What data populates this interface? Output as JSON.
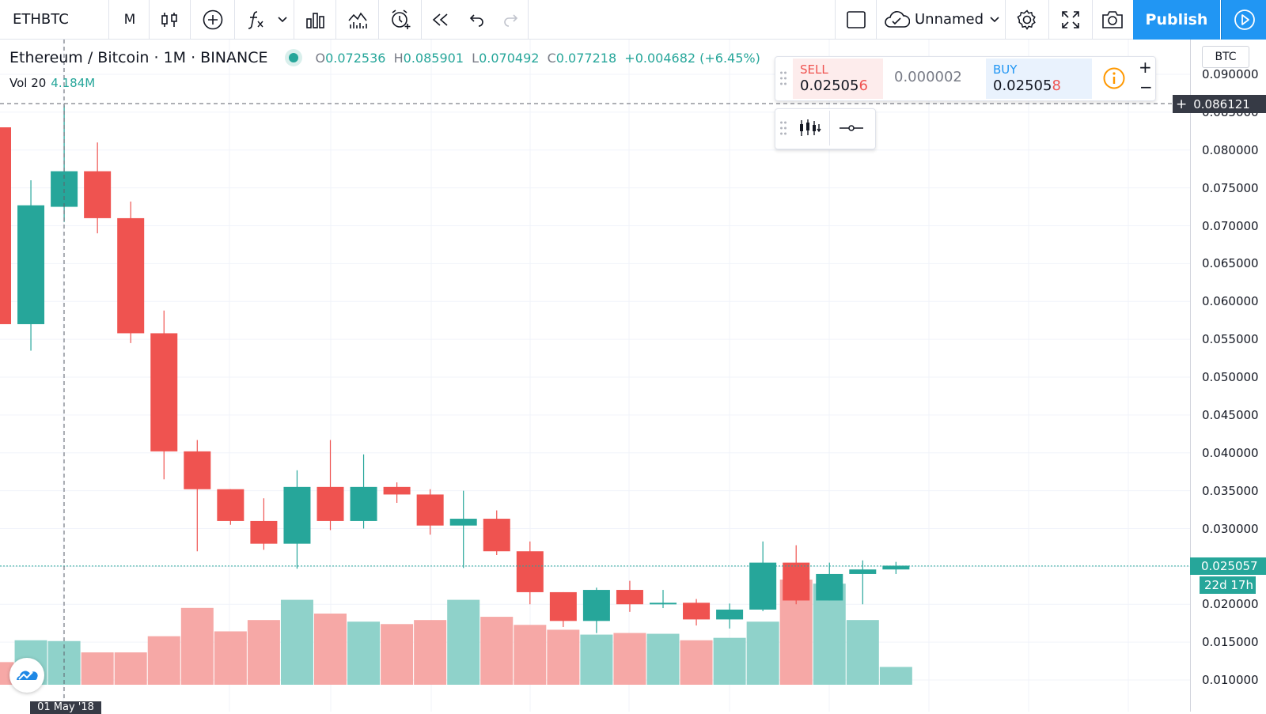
{
  "toolbar": {
    "symbol": "ETHBTC",
    "interval": "M",
    "layout_name": "Unnamed",
    "publish_label": "Publish"
  },
  "legend": {
    "title": "Ethereum / Bitcoin · 1M · BINANCE",
    "o_key": "O",
    "o_val": "0.072536",
    "h_key": "H",
    "h_val": "0.085901",
    "l_key": "L",
    "l_val": "0.070492",
    "c_key": "C",
    "c_val": "0.077218",
    "change": "+0.004682 (+6.45%)",
    "vol_label": "Vol 20",
    "vol_value": "4.184M"
  },
  "trade": {
    "sell_label": "SELL",
    "sell_price_main": "0.02505",
    "sell_price_last": "6",
    "spread": "0.000002",
    "buy_label": "BUY",
    "buy_price_main": "0.02505",
    "buy_price_last": "8",
    "zoom_in": "+",
    "zoom_out": "−"
  },
  "price_scale": {
    "currency": "BTC",
    "ticks": [
      "0.090000",
      "0.085000",
      "0.080000",
      "0.075000",
      "0.070000",
      "0.065000",
      "0.060000",
      "0.055000",
      "0.050000",
      "0.045000",
      "0.040000",
      "0.035000",
      "0.030000",
      "0.025000",
      "0.020000",
      "0.015000",
      "0.010000"
    ],
    "crosshair_price": "0.086121",
    "last_price": "0.025057",
    "countdown": "22d 17h"
  },
  "time_scale": {
    "crosshair_date": "01 May '18"
  },
  "colors": {
    "up": "#26a69a",
    "down": "#ef5350",
    "up_volume": "#8fd2ca",
    "down_volume": "#f6a8a6",
    "accent": "#2196f3"
  },
  "chart_data": {
    "type": "candlestick",
    "symbol": "ETHBTC",
    "timeframe": "1M",
    "ylim": [
      0.0095,
      0.0985
    ],
    "candles": [
      {
        "o": 0.083,
        "h": 0.0905,
        "l": 0.057,
        "c": 0.057
      },
      {
        "o": 0.057,
        "h": 0.076,
        "l": 0.0535,
        "c": 0.0727
      },
      {
        "o": 0.0725,
        "h": 0.0859,
        "l": 0.0705,
        "c": 0.0772
      },
      {
        "o": 0.0772,
        "h": 0.081,
        "l": 0.069,
        "c": 0.071
      },
      {
        "o": 0.071,
        "h": 0.0732,
        "l": 0.0545,
        "c": 0.0558
      },
      {
        "o": 0.0558,
        "h": 0.0588,
        "l": 0.0365,
        "c": 0.0402
      },
      {
        "o": 0.0402,
        "h": 0.0417,
        "l": 0.027,
        "c": 0.0352
      },
      {
        "o": 0.0352,
        "h": 0.0352,
        "l": 0.0305,
        "c": 0.031
      },
      {
        "o": 0.031,
        "h": 0.034,
        "l": 0.0272,
        "c": 0.028
      },
      {
        "o": 0.028,
        "h": 0.0377,
        "l": 0.0247,
        "c": 0.0355
      },
      {
        "o": 0.0355,
        "h": 0.0417,
        "l": 0.0298,
        "c": 0.031
      },
      {
        "o": 0.031,
        "h": 0.0398,
        "l": 0.03,
        "c": 0.0355
      },
      {
        "o": 0.0355,
        "h": 0.0361,
        "l": 0.0334,
        "c": 0.0345
      },
      {
        "o": 0.0345,
        "h": 0.0352,
        "l": 0.0292,
        "c": 0.0304
      },
      {
        "o": 0.0304,
        "h": 0.035,
        "l": 0.0248,
        "c": 0.0313
      },
      {
        "o": 0.0313,
        "h": 0.0324,
        "l": 0.0265,
        "c": 0.027
      },
      {
        "o": 0.027,
        "h": 0.0283,
        "l": 0.02,
        "c": 0.0216
      },
      {
        "o": 0.0216,
        "h": 0.0216,
        "l": 0.017,
        "c": 0.0178
      },
      {
        "o": 0.0178,
        "h": 0.0222,
        "l": 0.0162,
        "c": 0.0219
      },
      {
        "o": 0.0219,
        "h": 0.0231,
        "l": 0.019,
        "c": 0.02
      },
      {
        "o": 0.02,
        "h": 0.0219,
        "l": 0.0195,
        "c": 0.0202
      },
      {
        "o": 0.0202,
        "h": 0.0207,
        "l": 0.0172,
        "c": 0.018
      },
      {
        "o": 0.018,
        "h": 0.0201,
        "l": 0.0168,
        "c": 0.0193
      },
      {
        "o": 0.0193,
        "h": 0.0283,
        "l": 0.0191,
        "c": 0.0255
      },
      {
        "o": 0.0255,
        "h": 0.0278,
        "l": 0.02,
        "c": 0.0205
      },
      {
        "o": 0.0205,
        "h": 0.0255,
        "l": 0.0205,
        "c": 0.024
      },
      {
        "o": 0.024,
        "h": 0.0258,
        "l": 0.02,
        "c": 0.0246
      },
      {
        "o": 0.0246,
        "h": 0.0256,
        "l": 0.024,
        "c": 0.0251
      }
    ],
    "volume_ratio": [
      0.28,
      0.55,
      0.54,
      0.4,
      0.4,
      0.6,
      0.95,
      0.66,
      0.8,
      1.05,
      0.88,
      0.78,
      0.75,
      0.8,
      1.05,
      0.84,
      0.74,
      0.68,
      0.62,
      0.64,
      0.63,
      0.55,
      0.58,
      0.78,
      1.3,
      1.25,
      0.8,
      0.22
    ]
  }
}
